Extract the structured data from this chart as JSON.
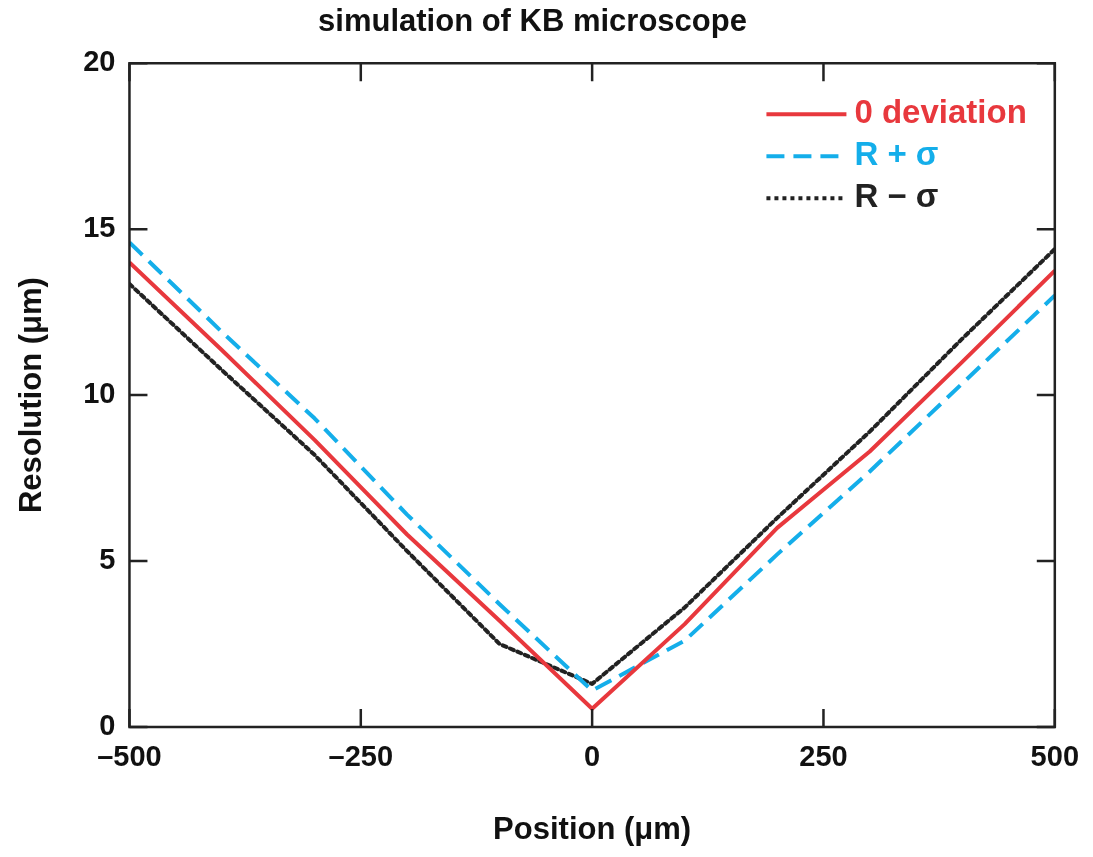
{
  "chart_data": {
    "type": "line",
    "title": "simulation of KB microscope",
    "xlabel": "Position (μm)",
    "ylabel": "Resolution (μm)",
    "x": [
      -500,
      -400,
      -300,
      -200,
      -100,
      0,
      100,
      200,
      300,
      400,
      500
    ],
    "xlim": [
      -500,
      500
    ],
    "xticks": [
      {
        "value": -500,
        "label": "–500"
      },
      {
        "value": -250,
        "label": "–250"
      },
      0,
      250,
      500
    ],
    "ylim": [
      0,
      20
    ],
    "yticks": [
      0,
      5,
      10,
      15,
      20
    ],
    "grid": false,
    "legend": "top right",
    "marker": "none",
    "series": [
      {
        "name": "0 deviation",
        "color": "#e8383d",
        "line_style": "solid",
        "values": [
          14.0,
          11.35,
          8.65,
          5.8,
          3.2,
          0.55,
          3.1,
          6.0,
          8.3,
          11.0,
          13.75
        ]
      },
      {
        "name": "R + σ",
        "color": "#14aeea",
        "line_style": "dashed",
        "values": [
          14.6,
          11.9,
          9.3,
          6.4,
          3.7,
          1.1,
          2.6,
          5.2,
          7.7,
          10.35,
          13.0
        ]
      },
      {
        "name": "R − σ",
        "color": "#222222",
        "line_style": "dotted",
        "values": [
          13.35,
          10.75,
          8.2,
          5.3,
          2.5,
          1.3,
          3.6,
          6.3,
          8.9,
          11.7,
          14.4
        ]
      }
    ]
  }
}
